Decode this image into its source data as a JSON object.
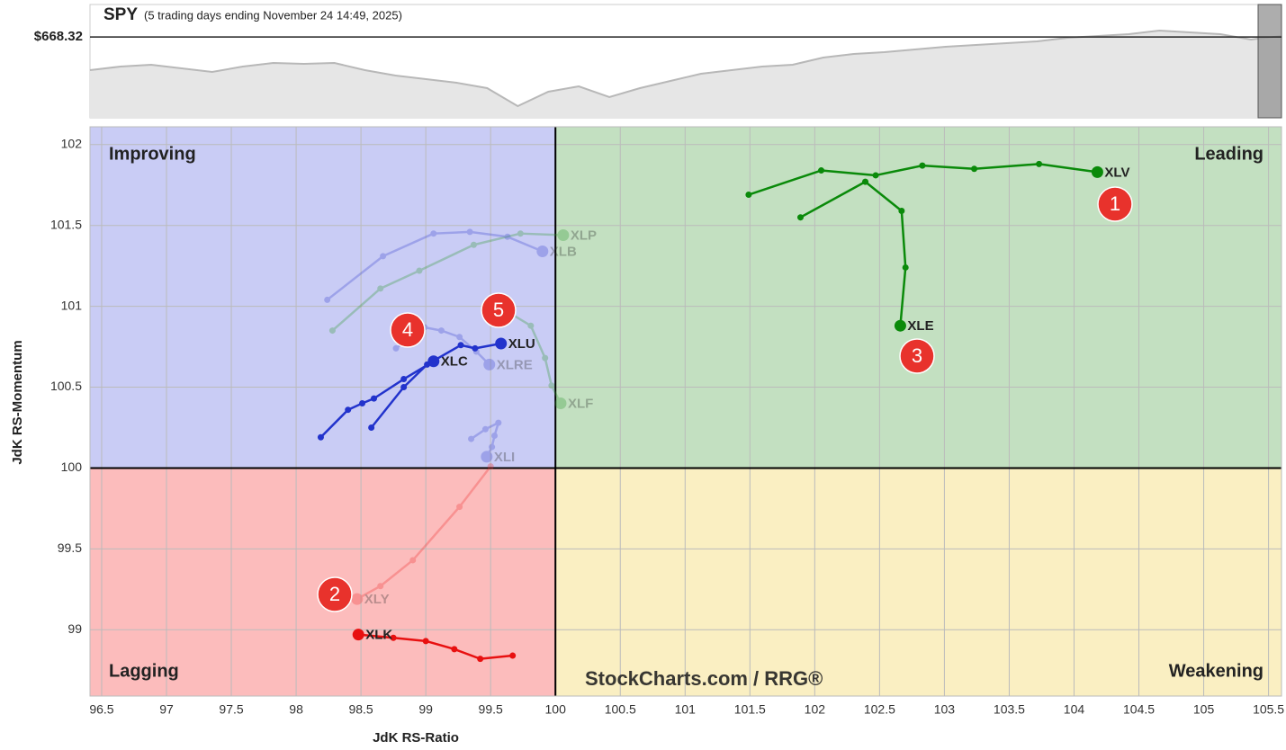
{
  "chart_data": [
    {
      "type": "line",
      "title": "SPY",
      "subtitle": "(5 trading days ending November 24 14:49, 2025)",
      "reference": {
        "value": 668.32,
        "label": "$668.32"
      },
      "ylim": [
        440,
        760
      ],
      "color": "#b8b8b8",
      "values": [
        574.6,
        584.8,
        589.9,
        579.7,
        569.5,
        584.8,
        594.9,
        592.4,
        594.9,
        574.6,
        559.4,
        549.2,
        539.1,
        523.8,
        473.0,
        513.7,
        528.9,
        498.4,
        523.8,
        544.1,
        564.5,
        574.6,
        584.8,
        589.9,
        610.2,
        620.3,
        625.4,
        633.0,
        640.7,
        645.7,
        650.8,
        655.9,
        666.1,
        671.1,
        676.2,
        686.4,
        681.3,
        676.2,
        661.0,
        671.1
      ]
    },
    {
      "type": "rrg",
      "x_label": "JdK RS-Ratio",
      "y_label": "JdK RS-Momentum",
      "xlim": [
        96.41,
        105.6
      ],
      "ylim": [
        98.59,
        102.11
      ],
      "center": 100,
      "grid": true,
      "xticks": [
        96.5,
        97,
        97.5,
        98,
        98.5,
        99,
        99.5,
        100,
        100.5,
        101,
        101.5,
        102,
        102.5,
        103,
        103.5,
        104,
        104.5,
        105,
        105.5
      ],
      "yticks": [
        99,
        99.5,
        100,
        100.5,
        101,
        101.5,
        102
      ],
      "quadrants": [
        {
          "name": "Improving",
          "color": "#3344cc",
          "fill": "#c9ccf5"
        },
        {
          "name": "Leading",
          "color": "#1f8a1f",
          "fill": "#c3e0c1"
        },
        {
          "name": "Lagging",
          "color": "#e02020",
          "fill": "#fcbcbc"
        },
        {
          "name": "Weakening",
          "color": "#e8c020",
          "fill": "#faefc2"
        }
      ],
      "series": [
        {
          "name": "XLP",
          "color": "#2e9a2e",
          "opacity": 0.3,
          "x": [
            98.28,
            98.65,
            98.95,
            99.37,
            99.73,
            100.06
          ],
          "values": [
            100.85,
            101.11,
            101.22,
            101.38,
            101.45,
            101.44
          ]
        },
        {
          "name": "XLB",
          "color": "#3a45d0",
          "opacity": 0.3,
          "x": [
            98.24,
            98.67,
            99.06,
            99.34,
            99.63,
            99.9
          ],
          "values": [
            101.04,
            101.31,
            101.45,
            101.46,
            101.43,
            101.34
          ]
        },
        {
          "name": "XLRE",
          "color": "#3a45d0",
          "opacity": 0.3,
          "x": [
            98.77,
            98.99,
            99.12,
            99.26,
            99.39,
            99.49
          ],
          "values": [
            100.74,
            100.87,
            100.85,
            100.81,
            100.72,
            100.64
          ]
        },
        {
          "name": "XLF",
          "color": "#2e9a2e",
          "opacity": 0.3,
          "x": [
            99.52,
            99.81,
            99.92,
            99.97,
            100.04
          ],
          "values": [
            101.02,
            100.88,
            100.68,
            100.51,
            100.4
          ]
        },
        {
          "name": "XLI",
          "color": "#3a45d0",
          "opacity": 0.3,
          "x": [
            99.35,
            99.46,
            99.56,
            99.53,
            99.51,
            99.47
          ],
          "values": [
            100.18,
            100.24,
            100.28,
            100.2,
            100.13,
            100.07
          ]
        },
        {
          "name": "XLY",
          "color": "#f03030",
          "opacity": 0.3,
          "x": [
            99.5,
            99.26,
            98.9,
            98.65,
            98.47
          ],
          "values": [
            100.01,
            99.76,
            99.43,
            99.27,
            99.19
          ]
        },
        {
          "name": "XLV",
          "color": "#0a8a0a",
          "opacity": 1,
          "x": [
            101.49,
            102.05,
            102.47,
            102.83,
            103.23,
            103.73,
            104.18
          ],
          "values": [
            101.69,
            101.84,
            101.81,
            101.87,
            101.85,
            101.88,
            101.83
          ]
        },
        {
          "name": "XLE",
          "color": "#0a8a0a",
          "opacity": 1,
          "x": [
            101.89,
            102.39,
            102.67,
            102.7,
            102.66
          ],
          "values": [
            101.55,
            101.77,
            101.59,
            101.24,
            100.88
          ]
        },
        {
          "name": "XLK",
          "color": "#e81010",
          "opacity": 1,
          "x": [
            99.67,
            99.42,
            99.22,
            99.0,
            98.75,
            98.48
          ],
          "values": [
            98.84,
            98.82,
            98.88,
            98.93,
            98.95,
            98.97
          ]
        },
        {
          "name": "XLC",
          "color": "#2233cc",
          "opacity": 1,
          "x": [
            98.19,
            98.4,
            98.51,
            98.6,
            98.83,
            99.06
          ],
          "values": [
            100.19,
            100.36,
            100.4,
            100.43,
            100.55,
            100.66
          ]
        },
        {
          "name": "XLU",
          "color": "#2233cc",
          "opacity": 1,
          "x": [
            98.58,
            98.83,
            99.01,
            99.27,
            99.38,
            99.58
          ],
          "values": [
            100.25,
            100.5,
            100.64,
            100.76,
            100.74,
            100.77
          ]
        }
      ],
      "annotations": [
        "1",
        "2",
        "3",
        "4",
        "5"
      ],
      "watermark": "StockCharts.com / RRG®"
    }
  ]
}
